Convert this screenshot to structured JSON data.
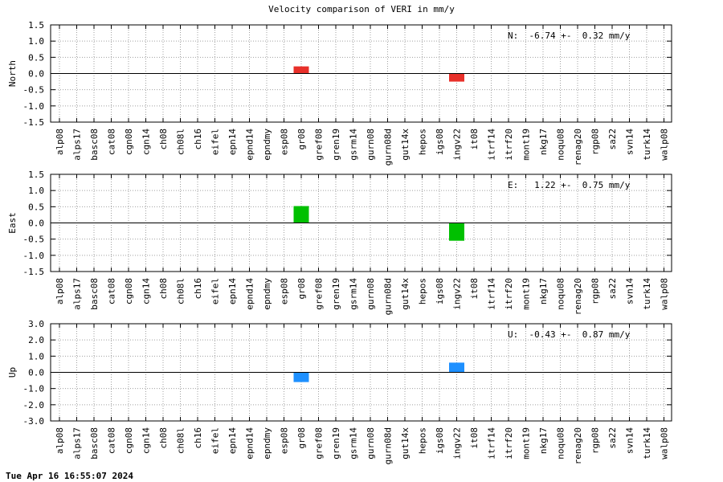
{
  "title": "Velocity comparison of VERI in mm/y",
  "timestamp": "Tue Apr 16 16:55:07 2024",
  "chart_data": [
    {
      "type": "bar",
      "ylabel": "North",
      "ylim": [
        -1.5,
        1.5
      ],
      "yticks": [
        "1.5",
        "1.0",
        "0.5",
        "0.0",
        "-0.5",
        "-1.0",
        "-1.5"
      ],
      "grid": true,
      "annotation": "N:  -6.74 +-  0.32 mm/y",
      "color": "#e8302a",
      "categories": [
        "alp08",
        "alps17",
        "basc08",
        "cat08",
        "cgn08",
        "cgn14",
        "ch08",
        "ch08l",
        "ch16",
        "eifel",
        "epn14",
        "epnd14",
        "epndmy",
        "esp08",
        "gr08",
        "gref08",
        "gren19",
        "gsrm14",
        "gurn08",
        "gurn08d",
        "gut14x",
        "hepos",
        "igs08",
        "ingv22",
        "it08",
        "itrf14",
        "itrf20",
        "mont19",
        "nkg17",
        "noqu08",
        "renag20",
        "rgp08",
        "sa22",
        "svn14",
        "turk14",
        "walp08"
      ],
      "bars": [
        {
          "category": "gr08",
          "value": 0.22
        },
        {
          "category": "ingv22",
          "value": -0.25
        }
      ]
    },
    {
      "type": "bar",
      "ylabel": "East",
      "ylim": [
        -1.5,
        1.5
      ],
      "yticks": [
        "1.5",
        "1.0",
        "0.5",
        "0.0",
        "-0.5",
        "-1.0",
        "-1.5"
      ],
      "grid": true,
      "annotation": "E:   1.22 +-  0.75 mm/y",
      "color": "#00c000",
      "categories": [
        "alp08",
        "alps17",
        "basc08",
        "cat08",
        "cgn08",
        "cgn14",
        "ch08",
        "ch08l",
        "ch16",
        "eifel",
        "epn14",
        "epnd14",
        "epndmy",
        "esp08",
        "gr08",
        "gref08",
        "gren19",
        "gsrm14",
        "gurn08",
        "gurn08d",
        "gut14x",
        "hepos",
        "igs08",
        "ingv22",
        "it08",
        "itrf14",
        "itrf20",
        "mont19",
        "nkg17",
        "noqu08",
        "renag20",
        "rgp08",
        "sa22",
        "svn14",
        "turk14",
        "walp08"
      ],
      "bars": [
        {
          "category": "gr08",
          "value": 0.52
        },
        {
          "category": "ingv22",
          "value": -0.55
        }
      ]
    },
    {
      "type": "bar",
      "ylabel": "Up",
      "ylim": [
        -3.0,
        3.0
      ],
      "yticks": [
        "3.0",
        "2.0",
        "1.0",
        "0.0",
        "-1.0",
        "-2.0",
        "-3.0"
      ],
      "grid": true,
      "annotation": "U:  -0.43 +-  0.87 mm/y",
      "color": "#1e90ff",
      "categories": [
        "alp08",
        "alps17",
        "basc08",
        "cat08",
        "cgn08",
        "cgn14",
        "ch08",
        "ch08l",
        "ch16",
        "eifel",
        "epn14",
        "epnd14",
        "epndmy",
        "esp08",
        "gr08",
        "gref08",
        "gren19",
        "gsrm14",
        "gurn08",
        "gurn08d",
        "gut14x",
        "hepos",
        "igs08",
        "ingv22",
        "it08",
        "itrf14",
        "itrf20",
        "mont19",
        "nkg17",
        "noqu08",
        "renag20",
        "rgp08",
        "sa22",
        "svn14",
        "turk14",
        "walp08"
      ],
      "bars": [
        {
          "category": "gr08",
          "value": -0.6
        },
        {
          "category": "ingv22",
          "value": 0.6
        }
      ]
    }
  ]
}
